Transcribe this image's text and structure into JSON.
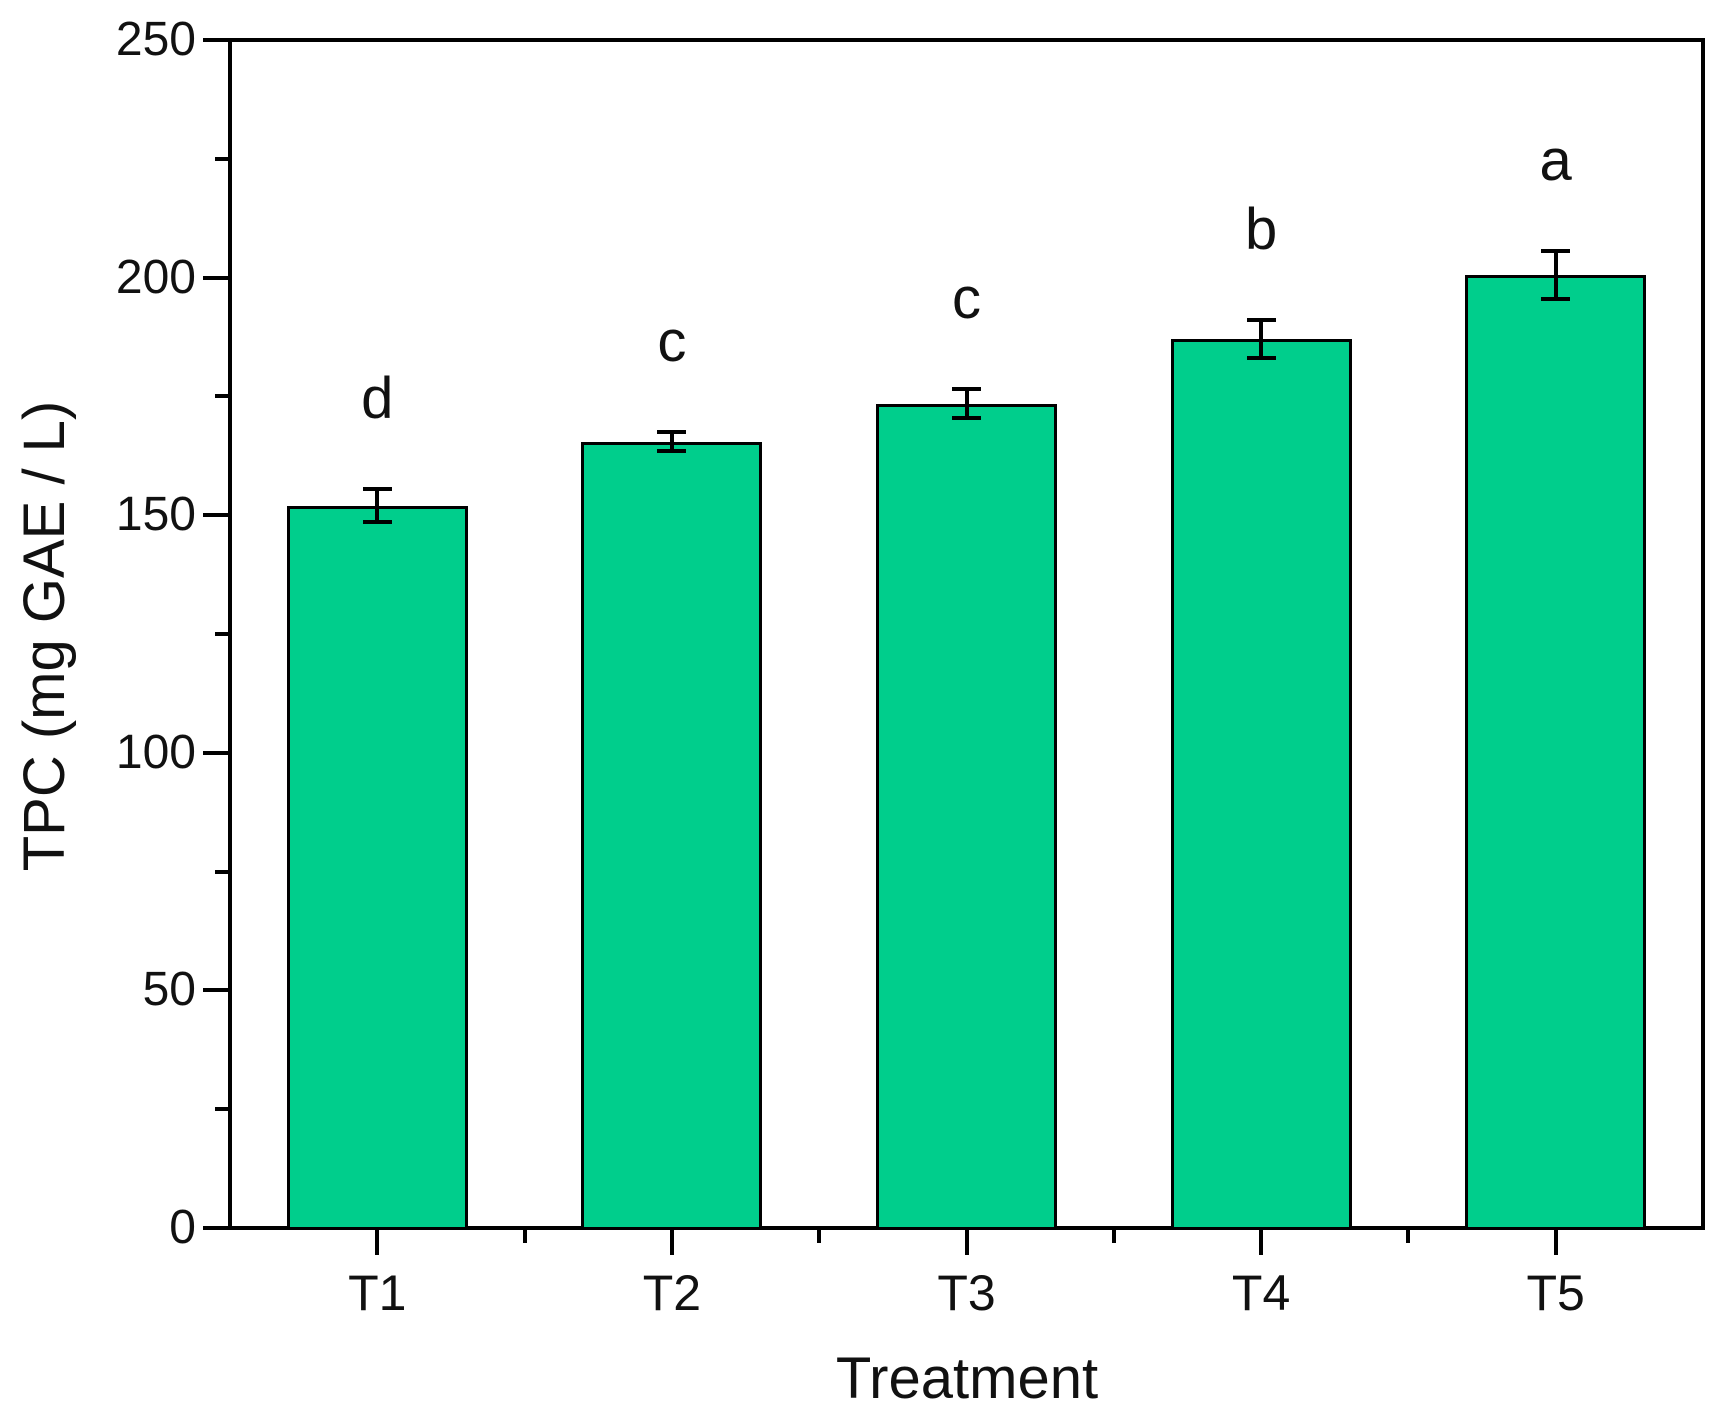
{
  "chart_data": {
    "type": "bar",
    "title": "",
    "xlabel": "Treatment",
    "ylabel": "TPC (mg GAE / L)",
    "categories": [
      "T1",
      "T2",
      "T3",
      "T4",
      "T5"
    ],
    "values": [
      152,
      165.5,
      173.5,
      187,
      200.5
    ],
    "errors": [
      3.5,
      2,
      3,
      4,
      5
    ],
    "sig_letters": [
      "d",
      "c",
      "c",
      "b",
      "a"
    ],
    "ylim": [
      0,
      250
    ],
    "y_major_ticks": [
      0,
      50,
      100,
      150,
      200,
      250
    ],
    "y_minor_step": 25,
    "grid": false,
    "legend": "none",
    "frame_box": true,
    "bar_color": "#00CE8C",
    "bar_edge_color": "#000000",
    "axis_color": "#000000"
  }
}
